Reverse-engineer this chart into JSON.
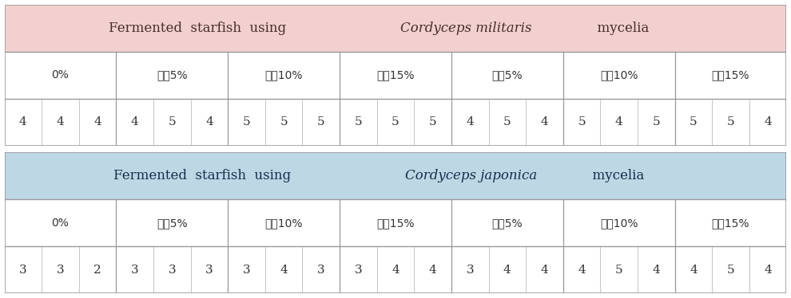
{
  "table1": {
    "title_parts": [
      "Fermented  starfish  using  ",
      "Cordyceps militaris",
      "  mycelia"
    ],
    "header_labels": [
      "0%",
      "쌌갘5%",
      "쌌갘10%",
      "쌌갘15%",
      "현미5%",
      "현미10%",
      "현미15%"
    ],
    "data": [
      4,
      4,
      4,
      4,
      5,
      4,
      5,
      5,
      5,
      5,
      5,
      5,
      4,
      5,
      4,
      5,
      4,
      5,
      5,
      5,
      4
    ],
    "bg_color": "#f2d0d0",
    "text_color": "#4a2a2a"
  },
  "table2": {
    "title_parts": [
      "Fermented  starfish  using  ",
      "Cordyceps japonica",
      "  mycelia"
    ],
    "header_labels": [
      "0%",
      "쌌갘5%",
      "쌌갘10%",
      "쌌갘15%",
      "현미5%",
      "현미10%",
      "현미15%"
    ],
    "data": [
      3,
      3,
      2,
      3,
      3,
      3,
      3,
      4,
      3,
      3,
      4,
      4,
      3,
      4,
      4,
      4,
      5,
      4,
      4,
      5,
      4
    ],
    "bg_color": "#bdd8e4",
    "text_color": "#1a2a4a"
  },
  "outer_bg": "#ffffff",
  "font_size_title": 12,
  "font_size_header": 10,
  "font_size_data": 11
}
